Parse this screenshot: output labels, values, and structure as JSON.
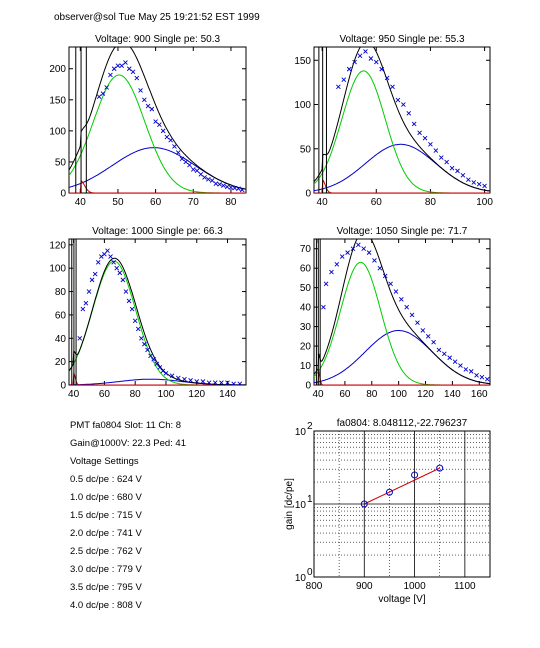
{
  "header": "observer@sol  Tue May 25 19:21:52 EST 1999",
  "info": {
    "pmt_line": "PMT fa0804 Slot: 11 Ch: 8",
    "gain_line": "Gain@1000V: 22.3 Ped: 41",
    "settings_title": "Voltage Settings",
    "settings": [
      "0.5 dc/pe : 624 V",
      "1.0 dc/pe : 680 V",
      "1.5 dc/pe : 715 V",
      "2.0 dc/pe : 741 V",
      "2.5 dc/pe : 762 V",
      "3.0 dc/pe : 779 V",
      "3.5 dc/pe : 795 V",
      "4.0 dc/pe : 808 V"
    ]
  },
  "colors": {
    "points": "#0000cc",
    "total": "#000000",
    "pe1": "#00cc00",
    "pe2": "#0000cc",
    "ped": "#cc0000",
    "fitline": "#cc0000"
  },
  "chart_data": [
    {
      "type": "line",
      "title": "Voltage: 900 Single pe: 50.3",
      "xlim": [
        37,
        84
      ],
      "ylim": [
        0,
        235
      ],
      "xticks": [
        40,
        50,
        60,
        70,
        80
      ],
      "yticks": [
        0,
        50,
        100,
        150,
        200
      ],
      "ped": {
        "center": 40,
        "peak": 20
      },
      "pe1": {
        "mu": 50.3,
        "sigma": 6.8,
        "amp": 190
      },
      "pe2": {
        "mu": 59.5,
        "sigma": 11,
        "amp": 73
      },
      "points": [
        [
          45,
          155
        ],
        [
          46,
          160
        ],
        [
          47,
          170
        ],
        [
          48,
          190
        ],
        [
          49,
          200
        ],
        [
          50,
          205
        ],
        [
          51,
          205
        ],
        [
          52,
          210
        ],
        [
          53,
          200
        ],
        [
          54,
          195
        ],
        [
          55,
          185
        ],
        [
          56,
          165
        ],
        [
          57,
          150
        ],
        [
          58,
          140
        ],
        [
          59,
          135
        ],
        [
          60,
          115
        ],
        [
          61,
          110
        ],
        [
          62,
          100
        ],
        [
          63,
          90
        ],
        [
          64,
          85
        ],
        [
          65,
          75
        ],
        [
          66,
          65
        ],
        [
          67,
          55
        ],
        [
          68,
          50
        ],
        [
          69,
          45
        ],
        [
          70,
          38
        ],
        [
          71,
          36
        ],
        [
          72,
          30
        ],
        [
          73,
          25
        ],
        [
          74,
          22
        ],
        [
          75,
          20
        ],
        [
          76,
          15
        ],
        [
          77,
          14
        ],
        [
          78,
          12
        ],
        [
          79,
          10
        ],
        [
          80,
          9
        ],
        [
          81,
          8
        ],
        [
          82,
          7
        ],
        [
          83,
          5
        ]
      ]
    },
    {
      "type": "line",
      "title": "Voltage: 950 Single pe: 55.3",
      "xlim": [
        37,
        102
      ],
      "ylim": [
        0,
        165
      ],
      "xticks": [
        40,
        60,
        80,
        100
      ],
      "yticks": [
        0,
        50,
        100,
        150
      ],
      "ped": {
        "center": 40,
        "peak": 15
      },
      "pe1": {
        "mu": 55.3,
        "sigma": 8,
        "amp": 138
      },
      "pe2": {
        "mu": 69,
        "sigma": 13,
        "amp": 55
      },
      "points": [
        [
          46,
          120
        ],
        [
          48,
          128
        ],
        [
          50,
          140
        ],
        [
          52,
          148
        ],
        [
          54,
          155
        ],
        [
          56,
          160
        ],
        [
          58,
          152
        ],
        [
          60,
          148
        ],
        [
          62,
          140
        ],
        [
          64,
          130
        ],
        [
          66,
          120
        ],
        [
          68,
          105
        ],
        [
          70,
          100
        ],
        [
          72,
          90
        ],
        [
          74,
          78
        ],
        [
          76,
          68
        ],
        [
          78,
          62
        ],
        [
          80,
          55
        ],
        [
          82,
          48
        ],
        [
          84,
          40
        ],
        [
          86,
          35
        ],
        [
          88,
          28
        ],
        [
          90,
          25
        ],
        [
          92,
          20
        ],
        [
          94,
          15
        ],
        [
          96,
          12
        ],
        [
          98,
          10
        ],
        [
          100,
          8
        ]
      ]
    },
    {
      "type": "line",
      "title": "Voltage: 1000 Single pe: 66.3",
      "xlim": [
        37,
        152
      ],
      "ylim": [
        0,
        125
      ],
      "xticks": [
        40,
        60,
        80,
        100,
        120,
        140
      ],
      "yticks": [
        0,
        20,
        40,
        60,
        80,
        100,
        120
      ],
      "ped": {
        "center": 40,
        "peak": 10
      },
      "pe1": {
        "mu": 66.3,
        "sigma": 14,
        "amp": 106
      },
      "pe2": {
        "mu": 90,
        "sigma": 20,
        "amp": 5
      },
      "points": [
        [
          44,
          40
        ],
        [
          46,
          65
        ],
        [
          48,
          70
        ],
        [
          50,
          80
        ],
        [
          52,
          90
        ],
        [
          54,
          95
        ],
        [
          56,
          105
        ],
        [
          58,
          110
        ],
        [
          60,
          112
        ],
        [
          62,
          115
        ],
        [
          64,
          110
        ],
        [
          66,
          105
        ],
        [
          68,
          100
        ],
        [
          70,
          96
        ],
        [
          72,
          90
        ],
        [
          74,
          80
        ],
        [
          76,
          72
        ],
        [
          78,
          65
        ],
        [
          80,
          55
        ],
        [
          82,
          48
        ],
        [
          84,
          40
        ],
        [
          86,
          35
        ],
        [
          88,
          30
        ],
        [
          90,
          25
        ],
        [
          92,
          22
        ],
        [
          94,
          18
        ],
        [
          96,
          15
        ],
        [
          98,
          12
        ],
        [
          100,
          10
        ],
        [
          104,
          8
        ],
        [
          108,
          6
        ],
        [
          112,
          5
        ],
        [
          116,
          4
        ],
        [
          120,
          3
        ],
        [
          124,
          3
        ],
        [
          128,
          2
        ],
        [
          132,
          2
        ],
        [
          136,
          2
        ],
        [
          140,
          2
        ],
        [
          144,
          1
        ],
        [
          148,
          1
        ]
      ]
    },
    {
      "type": "line",
      "title": "Voltage: 1050 Single pe: 71.7",
      "xlim": [
        37,
        168
      ],
      "ylim": [
        0,
        75
      ],
      "xticks": [
        40,
        60,
        80,
        100,
        120,
        140,
        160
      ],
      "yticks": [
        0,
        10,
        20,
        30,
        40,
        50,
        60,
        70
      ],
      "ped": {
        "center": 40,
        "peak": 8
      },
      "pe1": {
        "mu": 71.7,
        "sigma": 15,
        "amp": 63
      },
      "pe2": {
        "mu": 100,
        "sigma": 25,
        "amp": 28
      },
      "points": [
        [
          44,
          40
        ],
        [
          46,
          52
        ],
        [
          50,
          58
        ],
        [
          54,
          62
        ],
        [
          58,
          66
        ],
        [
          62,
          68
        ],
        [
          66,
          70
        ],
        [
          70,
          72
        ],
        [
          74,
          70
        ],
        [
          78,
          68
        ],
        [
          82,
          64
        ],
        [
          86,
          60
        ],
        [
          90,
          56
        ],
        [
          94,
          52
        ],
        [
          98,
          48
        ],
        [
          102,
          44
        ],
        [
          106,
          40
        ],
        [
          110,
          36
        ],
        [
          114,
          32
        ],
        [
          118,
          28
        ],
        [
          122,
          25
        ],
        [
          126,
          22
        ],
        [
          130,
          18
        ],
        [
          134,
          16
        ],
        [
          138,
          14
        ],
        [
          142,
          12
        ],
        [
          146,
          10
        ],
        [
          150,
          8
        ],
        [
          154,
          7
        ],
        [
          158,
          5
        ],
        [
          162,
          4
        ],
        [
          166,
          3
        ]
      ]
    },
    {
      "type": "scatter",
      "title": "fa0804: 8.048112,-22.796237",
      "xlabel": "voltage [V]",
      "ylabel": "gain [dc/pe]",
      "xlim": [
        800,
        1150
      ],
      "ylim": [
        1,
        100
      ],
      "yscale": "log",
      "xticks": [
        800,
        900,
        1000,
        1100
      ],
      "yticks": [
        1,
        10,
        100
      ],
      "ytick_labels": [
        {
          "base": "10",
          "exp": "0"
        },
        {
          "base": "10",
          "exp": "1"
        },
        {
          "base": "10",
          "exp": "2"
        }
      ],
      "grid": true,
      "points": [
        [
          900,
          10
        ],
        [
          950,
          14.5
        ],
        [
          1000,
          25
        ],
        [
          1050,
          31
        ]
      ],
      "fit": {
        "from": 900,
        "to": 1050
      }
    }
  ]
}
